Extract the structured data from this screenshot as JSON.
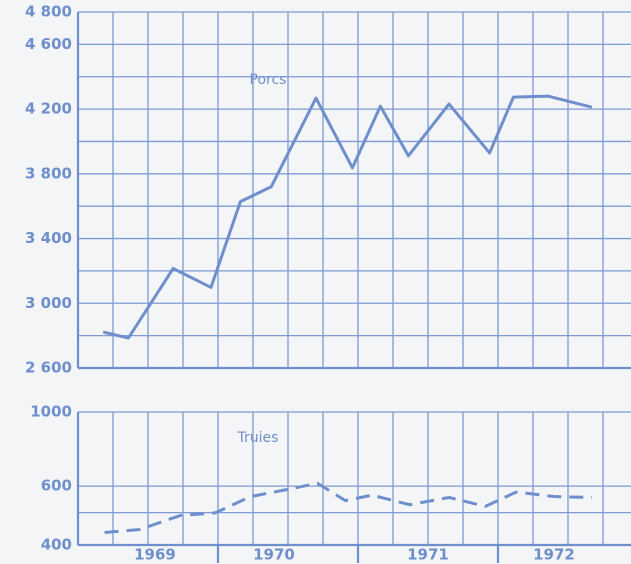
{
  "chart_data": [
    {
      "type": "line",
      "annotation": "Porcs",
      "log": false,
      "x": [
        1969.18,
        1969.36,
        1969.68,
        1969.95,
        1970.16,
        1970.38,
        1970.7,
        1970.96,
        1971.16,
        1971.36,
        1971.65,
        1971.94,
        1972.11,
        1972.36,
        1972.67
      ],
      "series": [
        {
          "name": "Porcs",
          "color": "#6f8fcc",
          "dash": false,
          "values": [
            2822,
            2785,
            3215,
            3098,
            3628,
            3720,
            4268,
            3837,
            4218,
            3911,
            4231,
            3929,
            4274,
            4280,
            4212
          ]
        }
      ],
      "xlim": [
        1969,
        1972.95
      ],
      "xminor": [
        1969,
        1969.25,
        1969.5,
        1969.75,
        1970,
        1970.25,
        1970.5,
        1970.75,
        1971,
        1971.25,
        1971.5,
        1971.75,
        1972,
        1972.25,
        1972.5,
        1972.75
      ],
      "ylim": [
        2600,
        4800
      ],
      "yticks": [
        {
          "value": 2600,
          "label": "2 600"
        },
        {
          "value": 3000,
          "label": "3 000"
        },
        {
          "value": 3400,
          "label": "3 400"
        },
        {
          "value": 3800,
          "label": "3 800"
        },
        {
          "value": 4200,
          "label": "4 200"
        },
        {
          "value": 4600,
          "label": "4 600"
        },
        {
          "value": 4800,
          "label": "4 800"
        }
      ],
      "yminor": [
        2800,
        3200,
        3600,
        4000,
        4400
      ],
      "grid": true
    },
    {
      "type": "line",
      "annotation": "Truies",
      "log": true,
      "x": [
        1969.19,
        1969.44,
        1969.73,
        1969.98,
        1970.23,
        1970.51,
        1970.71,
        1970.91,
        1971.1,
        1971.37,
        1971.65,
        1971.91,
        1972.13,
        1972.41,
        1972.67
      ],
      "series": [
        {
          "name": "Truies",
          "color": "#6f8fcc",
          "dash": true,
          "values": [
            436,
            445,
            490,
            499,
            558,
            588,
            612,
            543,
            564,
            528,
            555,
            522,
            576,
            558,
            555
          ]
        }
      ],
      "xlim": [
        1969,
        1972.95
      ],
      "xticks": [
        {
          "value": 1969.55,
          "label": "1969"
        },
        {
          "value": 1970.4,
          "label": "1970"
        },
        {
          "value": 1971.5,
          "label": "1971"
        },
        {
          "value": 1972.4,
          "label": "1972"
        }
      ],
      "xmajor": [
        1970,
        1971,
        1972
      ],
      "xminor": [
        1969,
        1969.25,
        1969.5,
        1969.75,
        1970,
        1970.25,
        1970.5,
        1970.75,
        1971,
        1971.25,
        1971.5,
        1971.75,
        1972,
        1972.25,
        1972.5,
        1972.75
      ],
      "ylim": [
        400,
        1000
      ],
      "yticks": [
        400,
        600,
        1000
      ],
      "yminor": [
        500
      ],
      "grid": true
    }
  ]
}
